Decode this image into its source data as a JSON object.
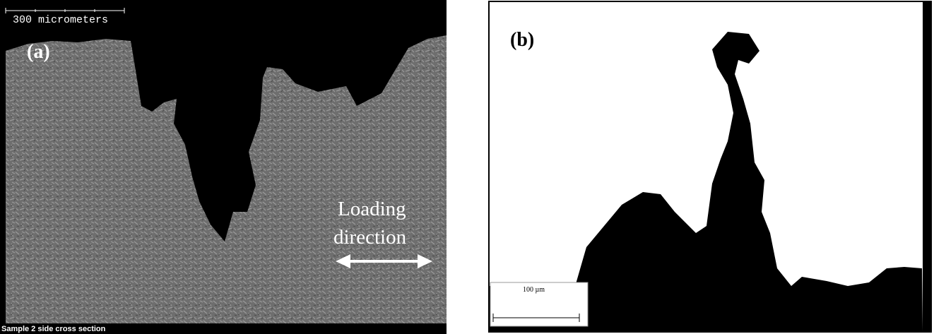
{
  "panel_a": {
    "scale_bar": "300 micrometers",
    "label": "(a)",
    "annotation": [
      "Loading",
      "direction"
    ],
    "caption": "Sample 2 side cross section"
  },
  "panel_b": {
    "label": "(b)",
    "scale_bar": "100 µm"
  }
}
